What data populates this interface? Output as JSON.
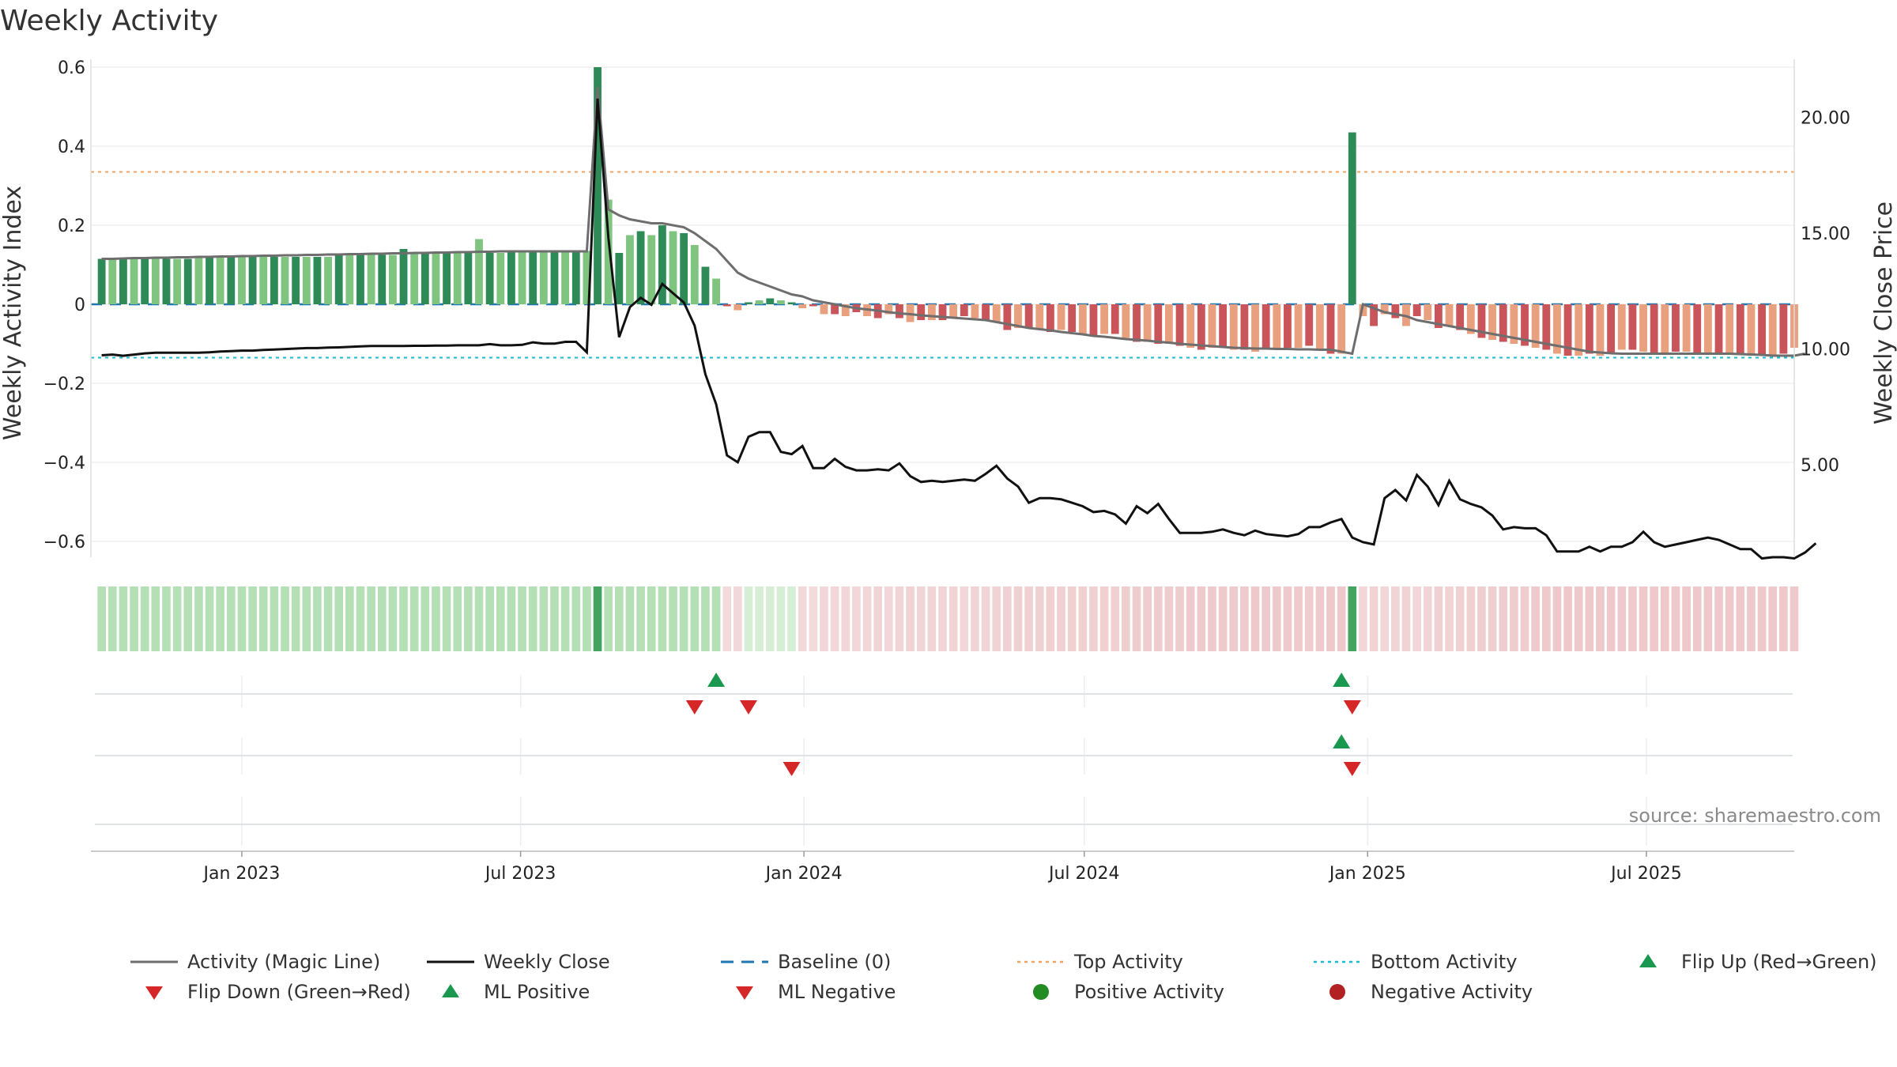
{
  "chart_data": {
    "type": "bar",
    "title": "Weekly Activity",
    "ylabel_left": "Weekly Activity Index",
    "ylabel_right": "Weekly Close Price",
    "source": "source: sharemaestro.com",
    "left_ticks": [
      {
        "value": 0.6,
        "label": "0.6"
      },
      {
        "value": 0.4,
        "label": "0.4"
      },
      {
        "value": 0.2,
        "label": "0.2"
      },
      {
        "value": 0,
        "label": "0"
      },
      {
        "value": -0.2,
        "label": "−0.2"
      },
      {
        "value": -0.4,
        "label": "−0.4"
      },
      {
        "value": -0.6,
        "label": "−0.6"
      }
    ],
    "right_ticks": [
      {
        "value": 20,
        "label": "20.00"
      },
      {
        "value": 15,
        "label": "15.00"
      },
      {
        "value": 10,
        "label": "10.00"
      },
      {
        "value": 5,
        "label": "5.00"
      }
    ],
    "x_ticks": [
      {
        "date": "2023-01-01",
        "label": "Jan 2023"
      },
      {
        "date": "2023-07-01",
        "label": "Jul 2023"
      },
      {
        "date": "2024-01-01",
        "label": "Jan 2024"
      },
      {
        "date": "2024-07-01",
        "label": "Jul 2024"
      },
      {
        "date": "2025-01-01",
        "label": "Jan 2025"
      },
      {
        "date": "2025-07-01",
        "label": "Jul 2025"
      }
    ],
    "x_range": [
      "2022-09-25",
      "2025-10-05"
    ],
    "ylim_left": [
      -0.64,
      0.62
    ],
    "ylim_right": [
      1.0,
      22.5
    ],
    "top_activity": 0.335,
    "bottom_activity": -0.135,
    "baseline": 0,
    "series": [
      {
        "name": "Weekly Activity Index",
        "start_date": "2022-10-02",
        "interval_days": 7,
        "values": [
          0.115,
          0.115,
          0.115,
          0.115,
          0.115,
          0.115,
          0.115,
          0.115,
          0.115,
          0.12,
          0.12,
          0.12,
          0.12,
          0.12,
          0.12,
          0.12,
          0.12,
          0.12,
          0.12,
          0.12,
          0.12,
          0.12,
          0.125,
          0.125,
          0.125,
          0.13,
          0.125,
          0.125,
          0.14,
          0.13,
          0.13,
          0.13,
          0.13,
          0.13,
          0.13,
          0.165,
          0.13,
          0.13,
          0.135,
          0.135,
          0.135,
          0.135,
          0.135,
          0.135,
          0.135,
          0.135,
          0.6,
          0.265,
          0.13,
          0.175,
          0.185,
          0.175,
          0.2,
          0.185,
          0.18,
          0.15,
          0.095,
          0.065,
          -0.005,
          -0.015,
          0.005,
          0.01,
          0.015,
          0.01,
          0.005,
          -0.01,
          -0.005,
          -0.025,
          -0.025,
          -0.03,
          -0.02,
          -0.03,
          -0.035,
          -0.025,
          -0.035,
          -0.045,
          -0.04,
          -0.04,
          -0.04,
          -0.035,
          -0.03,
          -0.035,
          -0.04,
          -0.045,
          -0.065,
          -0.06,
          -0.06,
          -0.065,
          -0.07,
          -0.065,
          -0.07,
          -0.075,
          -0.08,
          -0.075,
          -0.075,
          -0.085,
          -0.095,
          -0.095,
          -0.1,
          -0.1,
          -0.105,
          -0.11,
          -0.115,
          -0.11,
          -0.11,
          -0.115,
          -0.115,
          -0.12,
          -0.115,
          -0.115,
          -0.11,
          -0.11,
          -0.105,
          -0.115,
          -0.125,
          -0.125,
          0.435,
          -0.03,
          -0.055,
          -0.025,
          -0.035,
          -0.055,
          -0.03,
          -0.04,
          -0.06,
          -0.055,
          -0.065,
          -0.075,
          -0.085,
          -0.09,
          -0.095,
          -0.1,
          -0.105,
          -0.11,
          -0.115,
          -0.125,
          -0.13,
          -0.13,
          -0.125,
          -0.13,
          -0.125,
          -0.115,
          -0.115,
          -0.12,
          -0.125,
          -0.125,
          -0.12,
          -0.12,
          -0.125,
          -0.125,
          -0.125,
          -0.125,
          -0.125,
          -0.13,
          -0.13,
          -0.13,
          -0.125,
          -0.11
        ]
      },
      {
        "name": "Activity (Magic Line)",
        "start_date": "2022-10-02",
        "interval_days": 7,
        "values": [
          0.115,
          0.115,
          0.116,
          0.117,
          0.117,
          0.118,
          0.118,
          0.119,
          0.119,
          0.12,
          0.12,
          0.121,
          0.121,
          0.122,
          0.122,
          0.123,
          0.123,
          0.124,
          0.124,
          0.125,
          0.125,
          0.126,
          0.126,
          0.127,
          0.127,
          0.128,
          0.128,
          0.129,
          0.129,
          0.13,
          0.13,
          0.131,
          0.131,
          0.132,
          0.132,
          0.133,
          0.133,
          0.134,
          0.134,
          0.134,
          0.134,
          0.134,
          0.134,
          0.134,
          0.134,
          0.134,
          0.55,
          0.24,
          0.225,
          0.215,
          0.21,
          0.205,
          0.205,
          0.2,
          0.195,
          0.18,
          0.16,
          0.14,
          0.11,
          0.08,
          0.065,
          0.055,
          0.045,
          0.035,
          0.025,
          0.02,
          0.01,
          0.005,
          0.0,
          -0.005,
          -0.01,
          -0.013,
          -0.016,
          -0.02,
          -0.023,
          -0.025,
          -0.028,
          -0.03,
          -0.032,
          -0.034,
          -0.036,
          -0.038,
          -0.04,
          -0.045,
          -0.05,
          -0.055,
          -0.06,
          -0.063,
          -0.066,
          -0.07,
          -0.073,
          -0.076,
          -0.08,
          -0.082,
          -0.085,
          -0.088,
          -0.09,
          -0.092,
          -0.095,
          -0.097,
          -0.1,
          -0.102,
          -0.104,
          -0.106,
          -0.108,
          -0.11,
          -0.111,
          -0.112,
          -0.112,
          -0.113,
          -0.113,
          -0.114,
          -0.114,
          -0.115,
          -0.115,
          -0.12,
          -0.125,
          0.0,
          -0.01,
          -0.02,
          -0.025,
          -0.03,
          -0.04,
          -0.045,
          -0.05,
          -0.055,
          -0.06,
          -0.065,
          -0.07,
          -0.075,
          -0.08,
          -0.085,
          -0.09,
          -0.095,
          -0.1,
          -0.105,
          -0.11,
          -0.115,
          -0.12,
          -0.122,
          -0.124,
          -0.125,
          -0.125,
          -0.125,
          -0.125,
          -0.125,
          -0.125,
          -0.125,
          -0.125,
          -0.125,
          -0.125,
          -0.125,
          -0.126,
          -0.127,
          -0.128,
          -0.13,
          -0.13,
          -0.13,
          -0.125
        ]
      },
      {
        "name": "Weekly Close",
        "start_date": "2022-10-02",
        "interval_days": 7,
        "values": [
          9.72,
          9.75,
          9.7,
          9.75,
          9.8,
          9.83,
          9.83,
          9.83,
          9.83,
          9.83,
          9.85,
          9.88,
          9.9,
          9.92,
          9.92,
          9.95,
          9.97,
          9.99,
          10.01,
          10.03,
          10.03,
          10.05,
          10.06,
          10.08,
          10.1,
          10.12,
          10.12,
          10.12,
          10.12,
          10.13,
          10.13,
          10.14,
          10.14,
          10.15,
          10.15,
          10.15,
          10.2,
          10.15,
          10.15,
          10.17,
          10.28,
          10.22,
          10.22,
          10.3,
          10.3,
          9.85,
          20.8,
          14.8,
          10.5,
          11.8,
          12.2,
          11.9,
          12.8,
          12.4,
          12.0,
          11.0,
          8.9,
          7.6,
          5.4,
          5.1,
          6.2,
          6.4,
          6.4,
          5.55,
          5.45,
          5.8,
          4.85,
          4.85,
          5.25,
          4.9,
          4.75,
          4.75,
          4.8,
          4.75,
          5.05,
          4.5,
          4.25,
          4.3,
          4.25,
          4.3,
          4.35,
          4.3,
          4.6,
          4.95,
          4.4,
          4.05,
          3.35,
          3.55,
          3.55,
          3.5,
          3.35,
          3.2,
          2.95,
          3.0,
          2.85,
          2.45,
          3.2,
          2.9,
          3.3,
          2.65,
          2.05,
          2.05,
          2.05,
          2.1,
          2.2,
          2.05,
          1.95,
          2.15,
          2.0,
          1.95,
          1.9,
          2.0,
          2.3,
          2.3,
          2.5,
          2.65,
          1.85,
          1.65,
          1.55,
          3.55,
          3.9,
          3.45,
          4.55,
          4.05,
          3.25,
          4.3,
          3.5,
          3.3,
          3.15,
          2.8,
          2.2,
          2.3,
          2.25,
          2.25,
          1.95,
          1.25,
          1.25,
          1.25,
          1.45,
          1.25,
          1.45,
          1.45,
          1.65,
          2.1,
          1.65,
          1.45,
          1.55,
          1.65,
          1.75,
          1.85,
          1.75,
          1.55,
          1.35,
          1.35,
          0.95,
          1.0,
          1.0,
          0.95,
          1.2,
          1.6
        ]
      }
    ],
    "flip_up": [
      "2023-11-05",
      "2024-12-15"
    ],
    "flip_down": [
      "2023-10-22",
      "2023-11-26",
      "2024-12-22"
    ],
    "ml_positive": [
      "2024-12-15"
    ],
    "ml_negative": [
      "2023-12-24",
      "2024-12-22"
    ],
    "legend": [
      {
        "key": "magic",
        "label": "Activity (Magic Line)"
      },
      {
        "key": "close",
        "label": "Weekly Close"
      },
      {
        "key": "baseline",
        "label": "Baseline (0)"
      },
      {
        "key": "top",
        "label": "Top Activity"
      },
      {
        "key": "bottom",
        "label": "Bottom Activity"
      },
      {
        "key": "flipup",
        "label": "Flip Up (Red→Green)"
      },
      {
        "key": "flipdown",
        "label": "Flip Down (Green→Red)"
      },
      {
        "key": "mlpos",
        "label": "ML Positive"
      },
      {
        "key": "mlneg",
        "label": "ML Negative"
      },
      {
        "key": "posact",
        "label": "Positive Activity"
      },
      {
        "key": "negact",
        "label": "Negative Activity"
      }
    ]
  },
  "colors": {
    "green_dark": "#2e8b57",
    "green_light": "#7fc47f",
    "red_dark": "#c9555a",
    "red_light": "#e8a07f",
    "magic": "#6e6e6e",
    "close": "#111111",
    "baseline": "#1f77b4",
    "top": "#f4a460",
    "bottom": "#17becf",
    "marker_green": "#1a9850",
    "marker_red": "#d62728",
    "dot_green": "#228b22",
    "dot_red": "#b22222"
  }
}
